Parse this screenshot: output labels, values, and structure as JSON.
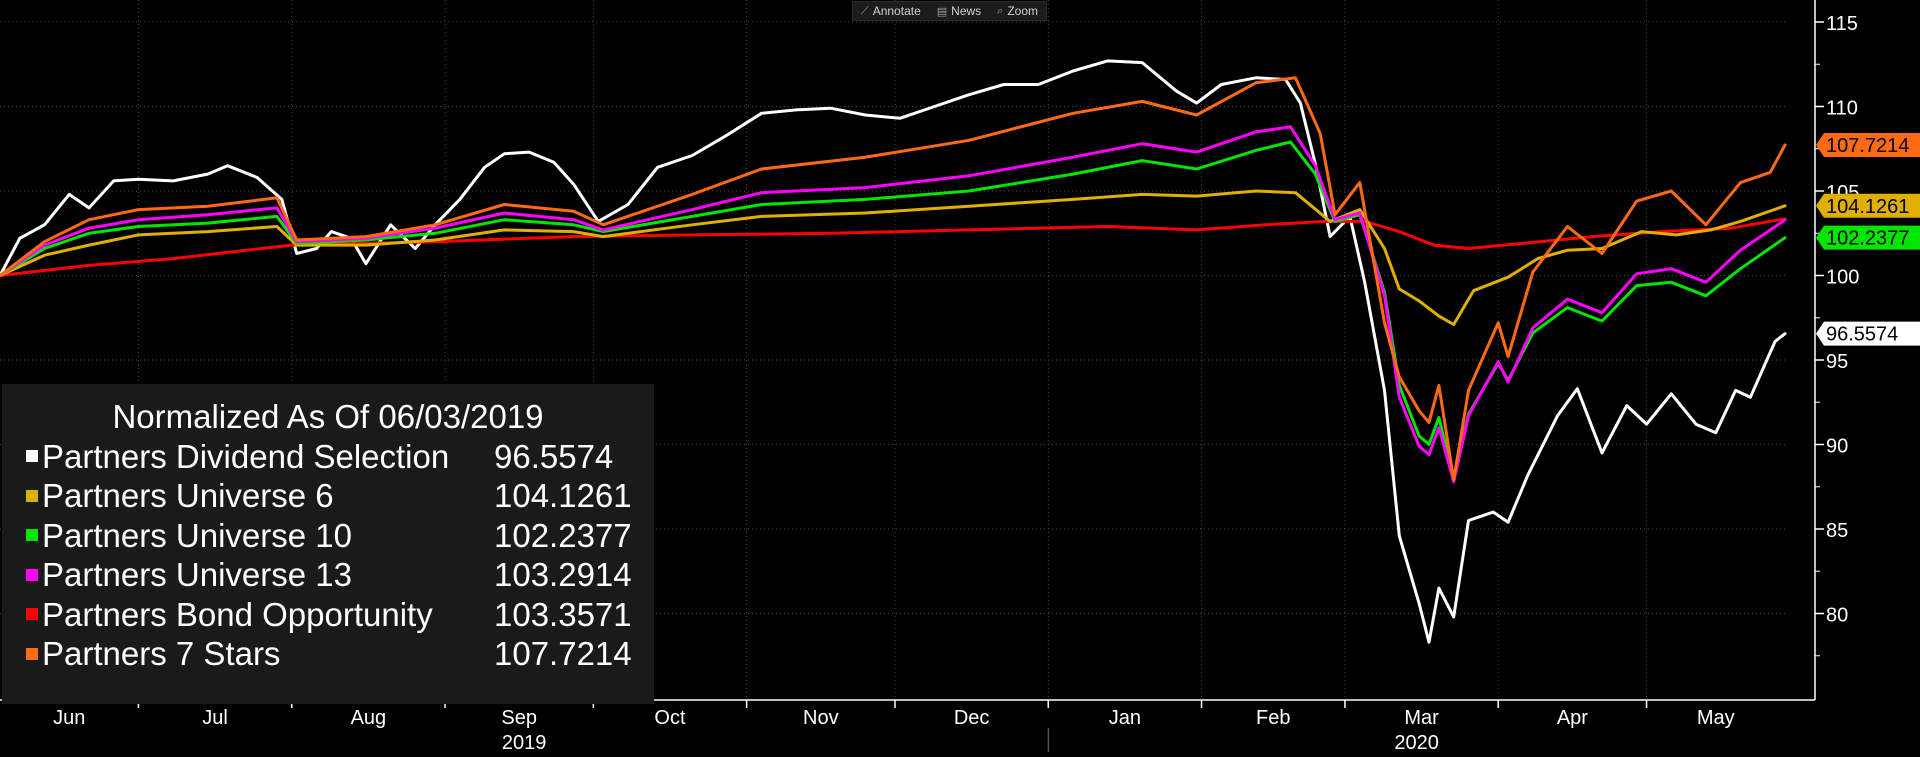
{
  "toolbar": {
    "annotate_label": "Annotate",
    "news_label": "News",
    "zoom_label": "Zoom",
    "annotate_icon": "pencil-icon",
    "news_icon": "news-icon",
    "zoom_icon": "magnifier-icon"
  },
  "legend": {
    "title": "Normalized As Of 06/03/2019"
  },
  "chart_data": {
    "type": "line",
    "title": "Normalized As Of 06/03/2019",
    "xlabel": "",
    "ylabel": "",
    "x_start": "2019-06-03",
    "x_end": "2020-05-29",
    "ylim": [
      75,
      116
    ],
    "yticks": [
      80,
      85,
      90,
      95,
      100,
      105,
      110,
      115
    ],
    "month_labels": [
      "Jun",
      "Jul",
      "Aug",
      "Sep",
      "Oct",
      "Nov",
      "Dec",
      "Jan",
      "Feb",
      "Mar",
      "Apr",
      "May"
    ],
    "year_labels": [
      "2019",
      "2020"
    ],
    "grid": true,
    "legend_position": "bottom-left",
    "series": [
      {
        "name": "Partners Dividend Selection",
        "color": "#ffffff",
        "last_value": "96.5574",
        "points": [
          [
            "2019-06-03",
            100
          ],
          [
            "2019-06-07",
            102.2
          ],
          [
            "2019-06-12",
            103.0
          ],
          [
            "2019-06-17",
            104.8
          ],
          [
            "2019-06-21",
            104.0
          ],
          [
            "2019-06-26",
            105.6
          ],
          [
            "2019-07-01",
            105.7
          ],
          [
            "2019-07-08",
            105.6
          ],
          [
            "2019-07-15",
            106.0
          ],
          [
            "2019-07-19",
            106.5
          ],
          [
            "2019-07-25",
            105.8
          ],
          [
            "2019-07-30",
            104.5
          ],
          [
            "2019-08-02",
            101.3
          ],
          [
            "2019-08-06",
            101.6
          ],
          [
            "2019-08-09",
            102.6
          ],
          [
            "2019-08-13",
            102.2
          ],
          [
            "2019-08-16",
            100.7
          ],
          [
            "2019-08-21",
            103.0
          ],
          [
            "2019-08-26",
            101.6
          ],
          [
            "2019-08-30",
            103.0
          ],
          [
            "2019-09-04",
            104.5
          ],
          [
            "2019-09-09",
            106.4
          ],
          [
            "2019-09-13",
            107.2
          ],
          [
            "2019-09-18",
            107.3
          ],
          [
            "2019-09-23",
            106.7
          ],
          [
            "2019-09-27",
            105.4
          ],
          [
            "2019-10-02",
            103.2
          ],
          [
            "2019-10-08",
            104.2
          ],
          [
            "2019-10-14",
            106.4
          ],
          [
            "2019-10-21",
            107.1
          ],
          [
            "2019-10-28",
            108.3
          ],
          [
            "2019-11-04",
            109.6
          ],
          [
            "2019-11-11",
            109.8
          ],
          [
            "2019-11-18",
            109.9
          ],
          [
            "2019-11-25",
            109.5
          ],
          [
            "2019-12-02",
            109.3
          ],
          [
            "2019-12-09",
            110.0
          ],
          [
            "2019-12-16",
            110.7
          ],
          [
            "2019-12-23",
            111.3
          ],
          [
            "2019-12-30",
            111.3
          ],
          [
            "2020-01-06",
            112.1
          ],
          [
            "2020-01-13",
            112.7
          ],
          [
            "2020-01-20",
            112.6
          ],
          [
            "2020-01-27",
            110.9
          ],
          [
            "2020-01-31",
            110.2
          ],
          [
            "2020-02-05",
            111.3
          ],
          [
            "2020-02-12",
            111.7
          ],
          [
            "2020-02-18",
            111.6
          ],
          [
            "2020-02-21",
            110.2
          ],
          [
            "2020-02-24",
            106.6
          ],
          [
            "2020-02-27",
            102.3
          ],
          [
            "2020-03-02",
            103.5
          ],
          [
            "2020-03-05",
            99.6
          ],
          [
            "2020-03-09",
            93.2
          ],
          [
            "2020-03-12",
            84.6
          ],
          [
            "2020-03-16",
            80.6
          ],
          [
            "2020-03-18",
            78.3
          ],
          [
            "2020-03-20",
            81.5
          ],
          [
            "2020-03-23",
            79.8
          ],
          [
            "2020-03-26",
            85.5
          ],
          [
            "2020-03-31",
            86.0
          ],
          [
            "2020-04-03",
            85.4
          ],
          [
            "2020-04-07",
            88.2
          ],
          [
            "2020-04-13",
            91.7
          ],
          [
            "2020-04-17",
            93.3
          ],
          [
            "2020-04-22",
            89.5
          ],
          [
            "2020-04-27",
            92.3
          ],
          [
            "2020-05-01",
            91.2
          ],
          [
            "2020-05-06",
            93.0
          ],
          [
            "2020-05-11",
            91.2
          ],
          [
            "2020-05-15",
            90.7
          ],
          [
            "2020-05-19",
            93.2
          ],
          [
            "2020-05-22",
            92.8
          ],
          [
            "2020-05-27",
            96.1
          ],
          [
            "2020-05-29",
            96.5574
          ]
        ]
      },
      {
        "name": "Partners Universe 6",
        "color": "#e0b000",
        "last_value": "104.1261",
        "points": [
          [
            "2019-06-03",
            100
          ],
          [
            "2019-06-12",
            101.2
          ],
          [
            "2019-06-21",
            101.8
          ],
          [
            "2019-07-01",
            102.4
          ],
          [
            "2019-07-15",
            102.6
          ],
          [
            "2019-07-29",
            102.9
          ],
          [
            "2019-08-02",
            101.8
          ],
          [
            "2019-08-16",
            101.8
          ],
          [
            "2019-08-30",
            102.1
          ],
          [
            "2019-09-13",
            102.7
          ],
          [
            "2019-09-27",
            102.6
          ],
          [
            "2019-10-03",
            102.3
          ],
          [
            "2019-10-21",
            103.0
          ],
          [
            "2019-11-04",
            103.5
          ],
          [
            "2019-11-25",
            103.7
          ],
          [
            "2019-12-16",
            104.1
          ],
          [
            "2020-01-06",
            104.5
          ],
          [
            "2020-01-20",
            104.8
          ],
          [
            "2020-01-31",
            104.7
          ],
          [
            "2020-02-12",
            105.0
          ],
          [
            "2020-02-20",
            104.9
          ],
          [
            "2020-02-27",
            103.2
          ],
          [
            "2020-03-04",
            103.9
          ],
          [
            "2020-03-09",
            101.6
          ],
          [
            "2020-03-12",
            99.2
          ],
          [
            "2020-03-16",
            98.5
          ],
          [
            "2020-03-20",
            97.6
          ],
          [
            "2020-03-23",
            97.1
          ],
          [
            "2020-03-27",
            99.1
          ],
          [
            "2020-04-03",
            99.9
          ],
          [
            "2020-04-09",
            101.0
          ],
          [
            "2020-04-15",
            101.5
          ],
          [
            "2020-04-22",
            101.6
          ],
          [
            "2020-04-30",
            102.6
          ],
          [
            "2020-05-07",
            102.4
          ],
          [
            "2020-05-14",
            102.7
          ],
          [
            "2020-05-20",
            103.2
          ],
          [
            "2020-05-29",
            104.1261
          ]
        ]
      },
      {
        "name": "Partners Universe 10",
        "color": "#00e600",
        "last_value": "102.2377",
        "points": [
          [
            "2019-06-03",
            100
          ],
          [
            "2019-06-12",
            101.6
          ],
          [
            "2019-06-21",
            102.5
          ],
          [
            "2019-07-01",
            102.9
          ],
          [
            "2019-07-15",
            103.1
          ],
          [
            "2019-07-29",
            103.5
          ],
          [
            "2019-08-02",
            101.9
          ],
          [
            "2019-08-16",
            102.1
          ],
          [
            "2019-08-30",
            102.5
          ],
          [
            "2019-09-13",
            103.3
          ],
          [
            "2019-09-27",
            103.0
          ],
          [
            "2019-10-03",
            102.6
          ],
          [
            "2019-10-21",
            103.5
          ],
          [
            "2019-11-04",
            104.2
          ],
          [
            "2019-11-25",
            104.5
          ],
          [
            "2019-12-16",
            105.0
          ],
          [
            "2020-01-06",
            106.0
          ],
          [
            "2020-01-20",
            106.8
          ],
          [
            "2020-01-31",
            106.3
          ],
          [
            "2020-02-12",
            107.4
          ],
          [
            "2020-02-19",
            107.9
          ],
          [
            "2020-02-24",
            106.0
          ],
          [
            "2020-02-28",
            103.2
          ],
          [
            "2020-03-04",
            103.6
          ],
          [
            "2020-03-09",
            99.0
          ],
          [
            "2020-03-12",
            93.5
          ],
          [
            "2020-03-16",
            90.5
          ],
          [
            "2020-03-18",
            90.0
          ],
          [
            "2020-03-20",
            91.6
          ],
          [
            "2020-03-23",
            88.0
          ],
          [
            "2020-03-26",
            91.8
          ],
          [
            "2020-04-01",
            94.8
          ],
          [
            "2020-04-03",
            93.8
          ],
          [
            "2020-04-08",
            96.6
          ],
          [
            "2020-04-15",
            98.1
          ],
          [
            "2020-04-22",
            97.3
          ],
          [
            "2020-04-29",
            99.4
          ],
          [
            "2020-05-06",
            99.6
          ],
          [
            "2020-05-13",
            98.8
          ],
          [
            "2020-05-20",
            100.4
          ],
          [
            "2020-05-29",
            102.2377
          ]
        ]
      },
      {
        "name": "Partners Universe 13",
        "color": "#ff00ff",
        "last_value": "103.2914",
        "points": [
          [
            "2019-06-03",
            100
          ],
          [
            "2019-06-12",
            101.8
          ],
          [
            "2019-06-21",
            102.8
          ],
          [
            "2019-07-01",
            103.3
          ],
          [
            "2019-07-15",
            103.6
          ],
          [
            "2019-07-29",
            104.0
          ],
          [
            "2019-08-02",
            102.0
          ],
          [
            "2019-08-16",
            102.2
          ],
          [
            "2019-08-30",
            102.8
          ],
          [
            "2019-09-13",
            103.7
          ],
          [
            "2019-09-27",
            103.3
          ],
          [
            "2019-10-03",
            102.7
          ],
          [
            "2019-10-21",
            103.9
          ],
          [
            "2019-11-04",
            104.9
          ],
          [
            "2019-11-25",
            105.2
          ],
          [
            "2019-12-16",
            105.9
          ],
          [
            "2020-01-06",
            107.0
          ],
          [
            "2020-01-20",
            107.8
          ],
          [
            "2020-01-31",
            107.3
          ],
          [
            "2020-02-12",
            108.5
          ],
          [
            "2020-02-19",
            108.8
          ],
          [
            "2020-02-24",
            106.5
          ],
          [
            "2020-02-28",
            103.3
          ],
          [
            "2020-03-04",
            103.7
          ],
          [
            "2020-03-09",
            98.8
          ],
          [
            "2020-03-12",
            92.8
          ],
          [
            "2020-03-16",
            89.9
          ],
          [
            "2020-03-18",
            89.4
          ],
          [
            "2020-03-20",
            91.0
          ],
          [
            "2020-03-23",
            87.8
          ],
          [
            "2020-03-26",
            91.7
          ],
          [
            "2020-04-01",
            94.9
          ],
          [
            "2020-04-03",
            93.7
          ],
          [
            "2020-04-08",
            96.9
          ],
          [
            "2020-04-15",
            98.6
          ],
          [
            "2020-04-22",
            97.8
          ],
          [
            "2020-04-29",
            100.1
          ],
          [
            "2020-05-06",
            100.4
          ],
          [
            "2020-05-13",
            99.6
          ],
          [
            "2020-05-20",
            101.5
          ],
          [
            "2020-05-29",
            103.2914
          ]
        ]
      },
      {
        "name": "Partners Bond Opportunity",
        "color": "#ff0000",
        "last_value": "103.3571",
        "points": [
          [
            "2019-06-03",
            100
          ],
          [
            "2019-06-21",
            100.6
          ],
          [
            "2019-07-08",
            101.0
          ],
          [
            "2019-08-01",
            101.8
          ],
          [
            "2019-08-30",
            102.0
          ],
          [
            "2019-09-27",
            102.3
          ],
          [
            "2019-10-21",
            102.4
          ],
          [
            "2019-11-18",
            102.5
          ],
          [
            "2019-12-16",
            102.7
          ],
          [
            "2020-01-13",
            102.9
          ],
          [
            "2020-01-31",
            102.7
          ],
          [
            "2020-02-14",
            103.0
          ],
          [
            "2020-02-26",
            103.2
          ],
          [
            "2020-03-05",
            103.2
          ],
          [
            "2020-03-12",
            102.6
          ],
          [
            "2020-03-19",
            101.8
          ],
          [
            "2020-03-26",
            101.6
          ],
          [
            "2020-04-06",
            101.9
          ],
          [
            "2020-04-20",
            102.3
          ],
          [
            "2020-05-04",
            102.6
          ],
          [
            "2020-05-18",
            102.8
          ],
          [
            "2020-05-29",
            103.3571
          ]
        ]
      },
      {
        "name": "Partners 7 Stars",
        "color": "#ff6a13",
        "last_value": "107.7214",
        "points": [
          [
            "2019-06-03",
            100
          ],
          [
            "2019-06-12",
            102.0
          ],
          [
            "2019-06-21",
            103.3
          ],
          [
            "2019-07-01",
            103.9
          ],
          [
            "2019-07-15",
            104.1
          ],
          [
            "2019-07-29",
            104.6
          ],
          [
            "2019-08-02",
            102.1
          ],
          [
            "2019-08-16",
            102.3
          ],
          [
            "2019-08-30",
            103.0
          ],
          [
            "2019-09-13",
            104.2
          ],
          [
            "2019-09-27",
            103.8
          ],
          [
            "2019-10-03",
            103.0
          ],
          [
            "2019-10-21",
            104.8
          ],
          [
            "2019-11-04",
            106.3
          ],
          [
            "2019-11-25",
            107.0
          ],
          [
            "2019-12-16",
            108.0
          ],
          [
            "2020-01-06",
            109.6
          ],
          [
            "2020-01-20",
            110.3
          ],
          [
            "2020-01-31",
            109.5
          ],
          [
            "2020-02-12",
            111.4
          ],
          [
            "2020-02-20",
            111.7
          ],
          [
            "2020-02-25",
            108.4
          ],
          [
            "2020-02-28",
            103.6
          ],
          [
            "2020-03-04",
            105.5
          ],
          [
            "2020-03-09",
            97.2
          ],
          [
            "2020-03-12",
            94.0
          ],
          [
            "2020-03-16",
            92.0
          ],
          [
            "2020-03-18",
            91.3
          ],
          [
            "2020-03-20",
            93.5
          ],
          [
            "2020-03-23",
            87.9
          ],
          [
            "2020-03-26",
            93.2
          ],
          [
            "2020-04-01",
            97.2
          ],
          [
            "2020-04-03",
            95.2
          ],
          [
            "2020-04-08",
            100.2
          ],
          [
            "2020-04-15",
            102.9
          ],
          [
            "2020-04-22",
            101.3
          ],
          [
            "2020-04-29",
            104.4
          ],
          [
            "2020-05-06",
            105.0
          ],
          [
            "2020-05-13",
            103.0
          ],
          [
            "2020-05-20",
            105.5
          ],
          [
            "2020-05-26",
            106.1
          ],
          [
            "2020-05-29",
            107.7214
          ]
        ]
      }
    ]
  }
}
